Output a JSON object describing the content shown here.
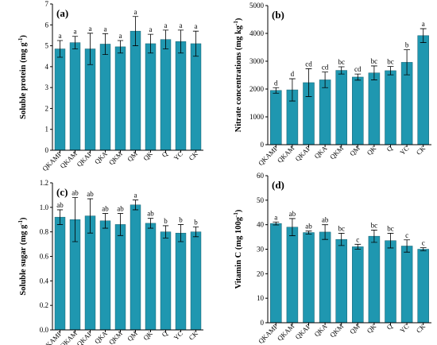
{
  "chart_data": [
    {
      "type": "bar",
      "panel": "(a)",
      "ylabel_text": "Soluble protein  (mg g",
      "ylabel_sup": "-1",
      "ylabel_close": ")",
      "categories": [
        "QKAMP",
        "QKAM",
        "QKAP",
        "QKA",
        "QKM",
        "QM",
        "QK",
        "Q",
        "YC",
        "CK"
      ],
      "values": [
        4.85,
        5.15,
        4.85,
        5.08,
        4.95,
        5.7,
        5.1,
        5.3,
        5.2,
        5.1
      ],
      "errors": [
        0.4,
        0.3,
        0.75,
        0.5,
        0.3,
        0.7,
        0.45,
        0.45,
        0.55,
        0.6
      ],
      "letters": [
        "a",
        "a",
        "a",
        "a",
        "a",
        "a",
        "a",
        "a",
        "a",
        "a"
      ],
      "ylim": [
        0,
        7
      ],
      "yticks": [
        "0",
        "1",
        "2",
        "3",
        "4",
        "5",
        "6",
        "7"
      ]
    },
    {
      "type": "bar",
      "panel": "(b)",
      "ylabel_text": "Nitrate concentrations  (mg kg",
      "ylabel_sup": "-1",
      "ylabel_close": ")",
      "categories": [
        "QKAMP",
        "QKAM",
        "QKAP",
        "QKA",
        "QKM",
        "QM",
        "QK",
        "Q",
        "YC",
        "CK"
      ],
      "values": [
        1950,
        1970,
        2230,
        2330,
        2670,
        2430,
        2580,
        2660,
        2960,
        3920
      ],
      "errors": [
        100,
        400,
        500,
        280,
        130,
        110,
        250,
        150,
        450,
        250
      ],
      "letters": [
        "d",
        "d",
        "cd",
        "cd",
        "bc",
        "cd",
        "bc",
        "bc",
        "b",
        "a"
      ],
      "ylim": [
        0,
        5000
      ],
      "yticks": [
        "0",
        "1000",
        "2000",
        "3000",
        "4000",
        "5000"
      ]
    },
    {
      "type": "bar",
      "panel": "(c)",
      "ylabel_text": "Soluble sugar  (mg g",
      "ylabel_sup": "-1",
      "ylabel_close": ")",
      "categories": [
        "QKAMP",
        "QKAM",
        "QKAP",
        "QKA",
        "QKM",
        "QM",
        "QK",
        "Q",
        "YC",
        "CK"
      ],
      "values": [
        0.92,
        0.9,
        0.93,
        0.89,
        0.86,
        1.02,
        0.87,
        0.8,
        0.79,
        0.8
      ],
      "errors": [
        0.06,
        0.18,
        0.14,
        0.06,
        0.09,
        0.04,
        0.04,
        0.05,
        0.07,
        0.04
      ],
      "letters": [
        "ab",
        "ab",
        "ab",
        "ab",
        "ab",
        "a",
        "ab",
        "b",
        "b",
        "b"
      ],
      "ylim": [
        0,
        1.2
      ],
      "yticks": [
        "0.0",
        "0.2",
        "0.4",
        "0.6",
        "0.8",
        "1.0",
        "1.2"
      ]
    },
    {
      "type": "bar",
      "panel": "(d)",
      "ylabel_text": "Vitamin C  (mg 100g",
      "ylabel_sup": "-1",
      "ylabel_close": ")",
      "categories": [
        "QKAMP",
        "QKAM",
        "QKAP",
        "QKA",
        "QKM",
        "QM",
        "QK",
        "Q",
        "YC",
        "CK"
      ],
      "values": [
        40.5,
        39,
        36.8,
        37,
        34,
        31,
        35.3,
        33.5,
        31.3,
        30
      ],
      "errors": [
        0.6,
        3.5,
        0.6,
        3,
        2.5,
        1,
        2.5,
        3,
        2.5,
        0.6
      ],
      "letters": [
        "a",
        "ab",
        "ab",
        "ab",
        "bc",
        "c",
        "bc",
        "bc",
        "c",
        "c"
      ],
      "ylim": [
        0,
        60
      ],
      "yticks": [
        "0",
        "10",
        "20",
        "30",
        "40",
        "50",
        "60"
      ]
    }
  ]
}
